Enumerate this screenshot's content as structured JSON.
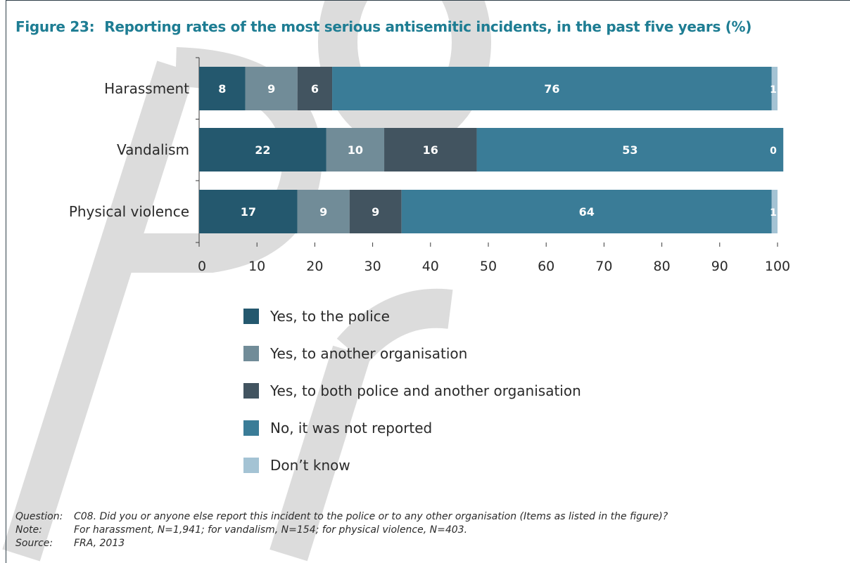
{
  "figure": {
    "number": "Figure 23:",
    "title": "Reporting rates of the most serious antisemitic incidents, in the past five years (%)"
  },
  "notes": {
    "question_label": "Question:",
    "question_text": "C08. Did you or anyone else report this incident to the police or to any other organisation (Items as listed in the figure)?",
    "note_label": "Note:",
    "note_text": "For harassment, N=1,941; for vandalism, N=154; for physical violence, N=403.",
    "source_label": "Source:",
    "source_text": "FRA, 2013"
  },
  "watermark": {
    "text": "PRO",
    "color": "#dcdcdc"
  },
  "chart_data": {
    "type": "bar",
    "orientation": "horizontal",
    "stacked": true,
    "title": "Reporting rates of the most serious antisemitic incidents, in the past five years (%)",
    "categories": [
      "Harassment",
      "Vandalism",
      "Physical violence"
    ],
    "series": [
      {
        "name": "Yes, to the police",
        "color": "#24586e",
        "values": [
          8,
          22,
          17
        ]
      },
      {
        "name": "Yes, to another organisation",
        "color": "#718c98",
        "values": [
          9,
          10,
          9
        ]
      },
      {
        "name": "Yes, to both police and another organisation",
        "color": "#425460",
        "values": [
          6,
          16,
          9
        ]
      },
      {
        "name": "No, it was not reported",
        "color": "#3a7c97",
        "values": [
          76,
          53,
          64
        ]
      },
      {
        "name": "Don’t know",
        "color": "#a4c3d4",
        "values": [
          1,
          0,
          1
        ]
      }
    ],
    "xlim": [
      0,
      100
    ],
    "xticks": [
      "0",
      "10",
      "20",
      "30",
      "40",
      "50",
      "60",
      "70",
      "80",
      "90",
      "100"
    ],
    "legend_position": "bottom",
    "grid": false
  }
}
